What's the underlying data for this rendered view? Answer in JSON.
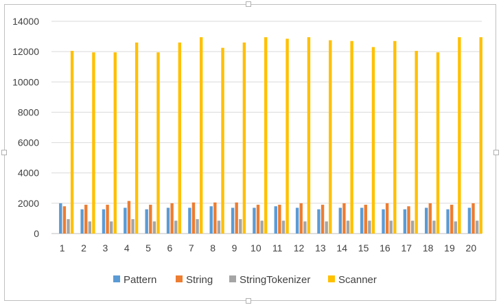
{
  "chart_data": {
    "type": "bar",
    "title": "",
    "xlabel": "",
    "ylabel": "",
    "ylim": [
      0,
      14000
    ],
    "yticks": [
      0,
      2000,
      4000,
      6000,
      8000,
      10000,
      12000,
      14000
    ],
    "grid": true,
    "legend_position": "bottom",
    "categories": [
      "1",
      "2",
      "3",
      "4",
      "5",
      "6",
      "7",
      "8",
      "9",
      "10",
      "11",
      "12",
      "13",
      "14",
      "15",
      "16",
      "17",
      "18",
      "19",
      "20"
    ],
    "series": [
      {
        "name": "Pattern",
        "color": "#5b9bd5",
        "values": [
          2000,
          1600,
          1600,
          1700,
          1600,
          1700,
          1700,
          1800,
          1700,
          1700,
          1800,
          1700,
          1600,
          1700,
          1700,
          1600,
          1600,
          1700,
          1600,
          1700
        ]
      },
      {
        "name": "String",
        "color": "#ed7d31",
        "values": [
          1800,
          1900,
          1900,
          2150,
          1900,
          2000,
          2050,
          2050,
          2050,
          1900,
          1900,
          2000,
          1900,
          2000,
          1900,
          2000,
          1800,
          2000,
          1900,
          2000
        ]
      },
      {
        "name": "StringTokenizer",
        "color": "#a5a5a5",
        "values": [
          950,
          800,
          800,
          950,
          800,
          850,
          950,
          850,
          950,
          850,
          850,
          800,
          800,
          850,
          850,
          850,
          850,
          850,
          800,
          850
        ]
      },
      {
        "name": "Scanner",
        "color": "#ffc000",
        "values": [
          12050,
          11950,
          11950,
          12600,
          11950,
          12600,
          12950,
          12250,
          12600,
          12950,
          12850,
          12950,
          12750,
          12700,
          12300,
          12700,
          12050,
          11950,
          12950,
          12950
        ]
      }
    ]
  }
}
